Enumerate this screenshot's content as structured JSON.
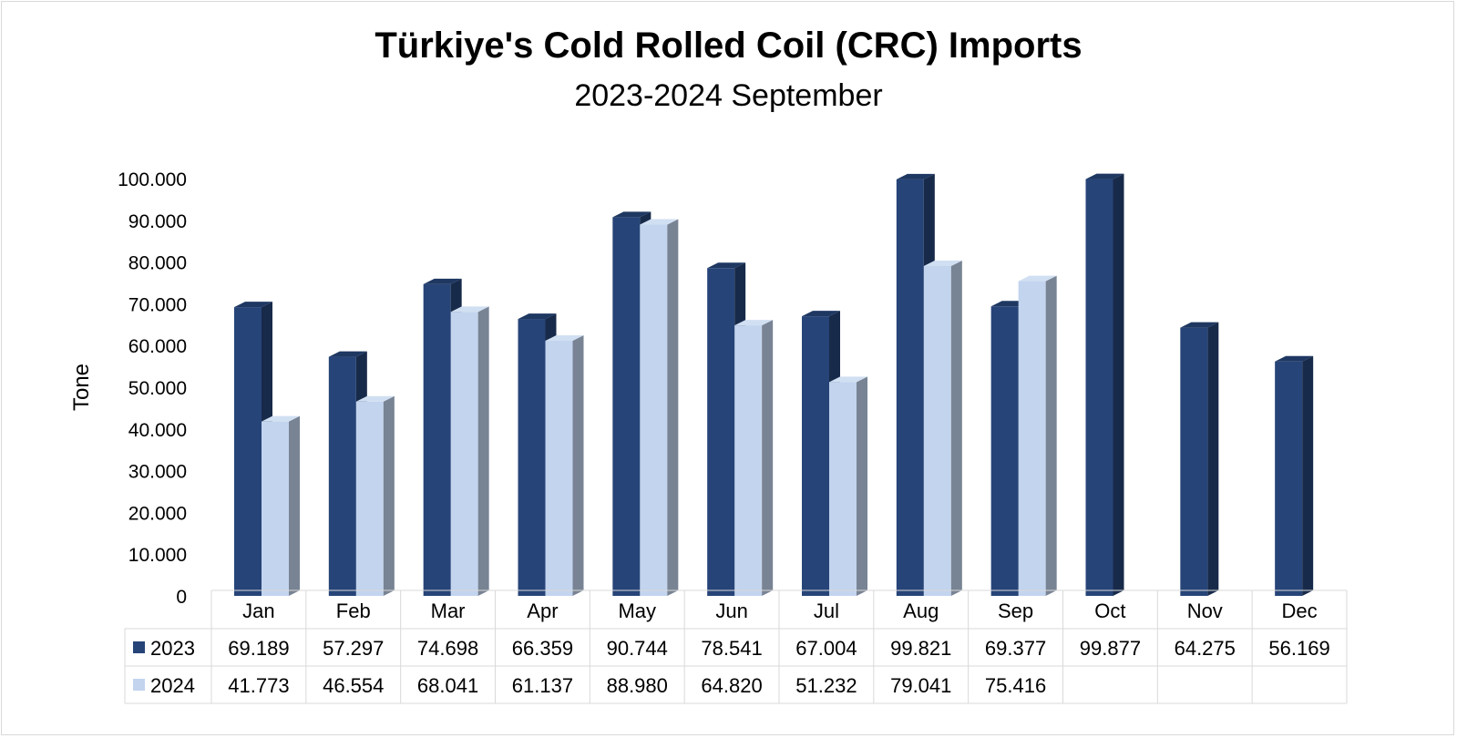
{
  "chart_data": {
    "type": "bar",
    "title": "Türkiye's Cold Rolled Coil (CRC) Imports",
    "subtitle": "2023-2024 September",
    "ylabel": "Tone",
    "xlabel": "",
    "ylim": [
      0,
      100000
    ],
    "yticks": [
      "0",
      "10.000",
      "20.000",
      "30.000",
      "40.000",
      "50.000",
      "60.000",
      "70.000",
      "80.000",
      "90.000",
      "100.000"
    ],
    "grid": false,
    "legend": "data-table",
    "style": "3d-columns",
    "categories": [
      "Jan",
      "Feb",
      "Mar",
      "Apr",
      "May",
      "Jun",
      "Jul",
      "Aug",
      "Sep",
      "Oct",
      "Nov",
      "Dec"
    ],
    "series": [
      {
        "name": "2023",
        "color": "#264478",
        "values": [
          69189,
          57297,
          74698,
          66359,
          90744,
          78541,
          67004,
          99821,
          69377,
          99877,
          64275,
          56169
        ],
        "labels": [
          "69.189",
          "57.297",
          "74.698",
          "66.359",
          "90.744",
          "78.541",
          "67.004",
          "99.821",
          "69.377",
          "99.877",
          "64.275",
          "56.169"
        ]
      },
      {
        "name": "2024",
        "color": "#c2d4ee",
        "values": [
          41773,
          46554,
          68041,
          61137,
          88980,
          64820,
          51232,
          79041,
          75416,
          null,
          null,
          null
        ],
        "labels": [
          "41.773",
          "46.554",
          "68.041",
          "61.137",
          "88.980",
          "64.820",
          "51.232",
          "79.041",
          "75.416",
          "",
          "",
          ""
        ]
      }
    ]
  }
}
